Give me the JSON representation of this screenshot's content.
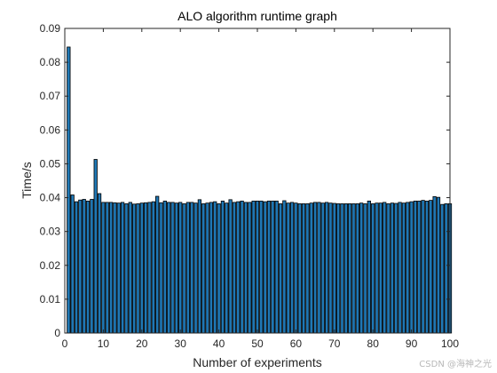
{
  "chart_data": {
    "type": "bar",
    "title": "ALO algorithm runtime graph",
    "xlabel": "Number of experiments",
    "ylabel": "Time/s",
    "xlim": [
      0,
      100
    ],
    "ylim": [
      0,
      0.09
    ],
    "xticks": [
      "0",
      "10",
      "20",
      "30",
      "40",
      "50",
      "60",
      "70",
      "80",
      "90",
      "100"
    ],
    "yticks": [
      "0",
      "0.01",
      "0.02",
      "0.03",
      "0.04",
      "0.05",
      "0.06",
      "0.07",
      "0.08",
      "0.09"
    ],
    "bar_color": "#1f77b4",
    "grid": false,
    "x": [
      1,
      2,
      3,
      4,
      5,
      6,
      7,
      8,
      9,
      10,
      11,
      12,
      13,
      14,
      15,
      16,
      17,
      18,
      19,
      20,
      21,
      22,
      23,
      24,
      25,
      26,
      27,
      28,
      29,
      30,
      31,
      32,
      33,
      34,
      35,
      36,
      37,
      38,
      39,
      40,
      41,
      42,
      43,
      44,
      45,
      46,
      47,
      48,
      49,
      50,
      51,
      52,
      53,
      54,
      55,
      56,
      57,
      58,
      59,
      60,
      61,
      62,
      63,
      64,
      65,
      66,
      67,
      68,
      69,
      70,
      71,
      72,
      73,
      74,
      75,
      76,
      77,
      78,
      79,
      80,
      81,
      82,
      83,
      84,
      85,
      86,
      87,
      88,
      89,
      90,
      91,
      92,
      93,
      94,
      95,
      96,
      97,
      98,
      99,
      100
    ],
    "values": [
      0.0845,
      0.0408,
      0.0388,
      0.0393,
      0.0395,
      0.039,
      0.0395,
      0.0513,
      0.0412,
      0.0386,
      0.0386,
      0.0386,
      0.0385,
      0.0384,
      0.0386,
      0.0382,
      0.0386,
      0.0381,
      0.0382,
      0.0384,
      0.0385,
      0.0386,
      0.0388,
      0.0404,
      0.0385,
      0.039,
      0.0386,
      0.0386,
      0.0384,
      0.0386,
      0.0382,
      0.0386,
      0.0386,
      0.0384,
      0.0394,
      0.0382,
      0.0384,
      0.0386,
      0.0388,
      0.0382,
      0.039,
      0.0384,
      0.0394,
      0.0386,
      0.0388,
      0.039,
      0.0386,
      0.0386,
      0.039,
      0.039,
      0.039,
      0.0388,
      0.039,
      0.039,
      0.039,
      0.0382,
      0.0391,
      0.0384,
      0.0386,
      0.0384,
      0.0382,
      0.0382,
      0.0382,
      0.0384,
      0.0386,
      0.0386,
      0.0384,
      0.0386,
      0.0384,
      0.0383,
      0.0382,
      0.0382,
      0.0382,
      0.0382,
      0.0382,
      0.0382,
      0.0384,
      0.0382,
      0.039,
      0.0382,
      0.0384,
      0.0384,
      0.0386,
      0.0382,
      0.0384,
      0.0383,
      0.0386,
      0.0384,
      0.0386,
      0.0388,
      0.039,
      0.039,
      0.0392,
      0.039,
      0.0392,
      0.0403,
      0.0401,
      0.038,
      0.0382,
      0.0382
    ]
  },
  "watermark": "CSDN @海神之光"
}
